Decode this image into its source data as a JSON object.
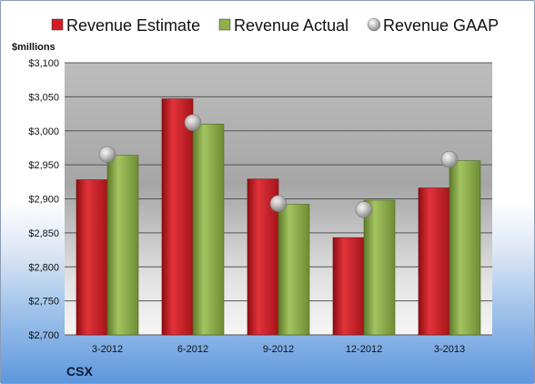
{
  "chart_data": {
    "type": "bar",
    "categories": [
      "3-2012",
      "6-2012",
      "9-2012",
      "12-2012",
      "3-2013"
    ],
    "series": [
      {
        "name": "Revenue Estimate",
        "values": [
          2928,
          3047,
          2929,
          2843,
          2916
        ],
        "color": "#d11c24",
        "kind": "bar"
      },
      {
        "name": "Revenue Actual",
        "values": [
          2964,
          3010,
          2892,
          2898,
          2956
        ],
        "color": "#8fb04a",
        "kind": "bar"
      },
      {
        "name": "Revenue GAAP",
        "values": [
          2965,
          3012,
          2893,
          2884,
          2958
        ],
        "color": "#b8b8b8",
        "kind": "marker"
      }
    ],
    "ylabel": "$millions",
    "ylim": [
      2700,
      3100
    ],
    "yticks": [
      2700,
      2750,
      2800,
      2850,
      2900,
      2950,
      3000,
      3050,
      3100
    ],
    "ytick_labels": [
      "$2,700",
      "$2,750",
      "$2,800",
      "$2,850",
      "$2,900",
      "$2,950",
      "$3,000",
      "$3,050",
      "$3,100"
    ],
    "grid": true,
    "legend_position": "top"
  },
  "footer": {
    "company": "CSX"
  }
}
